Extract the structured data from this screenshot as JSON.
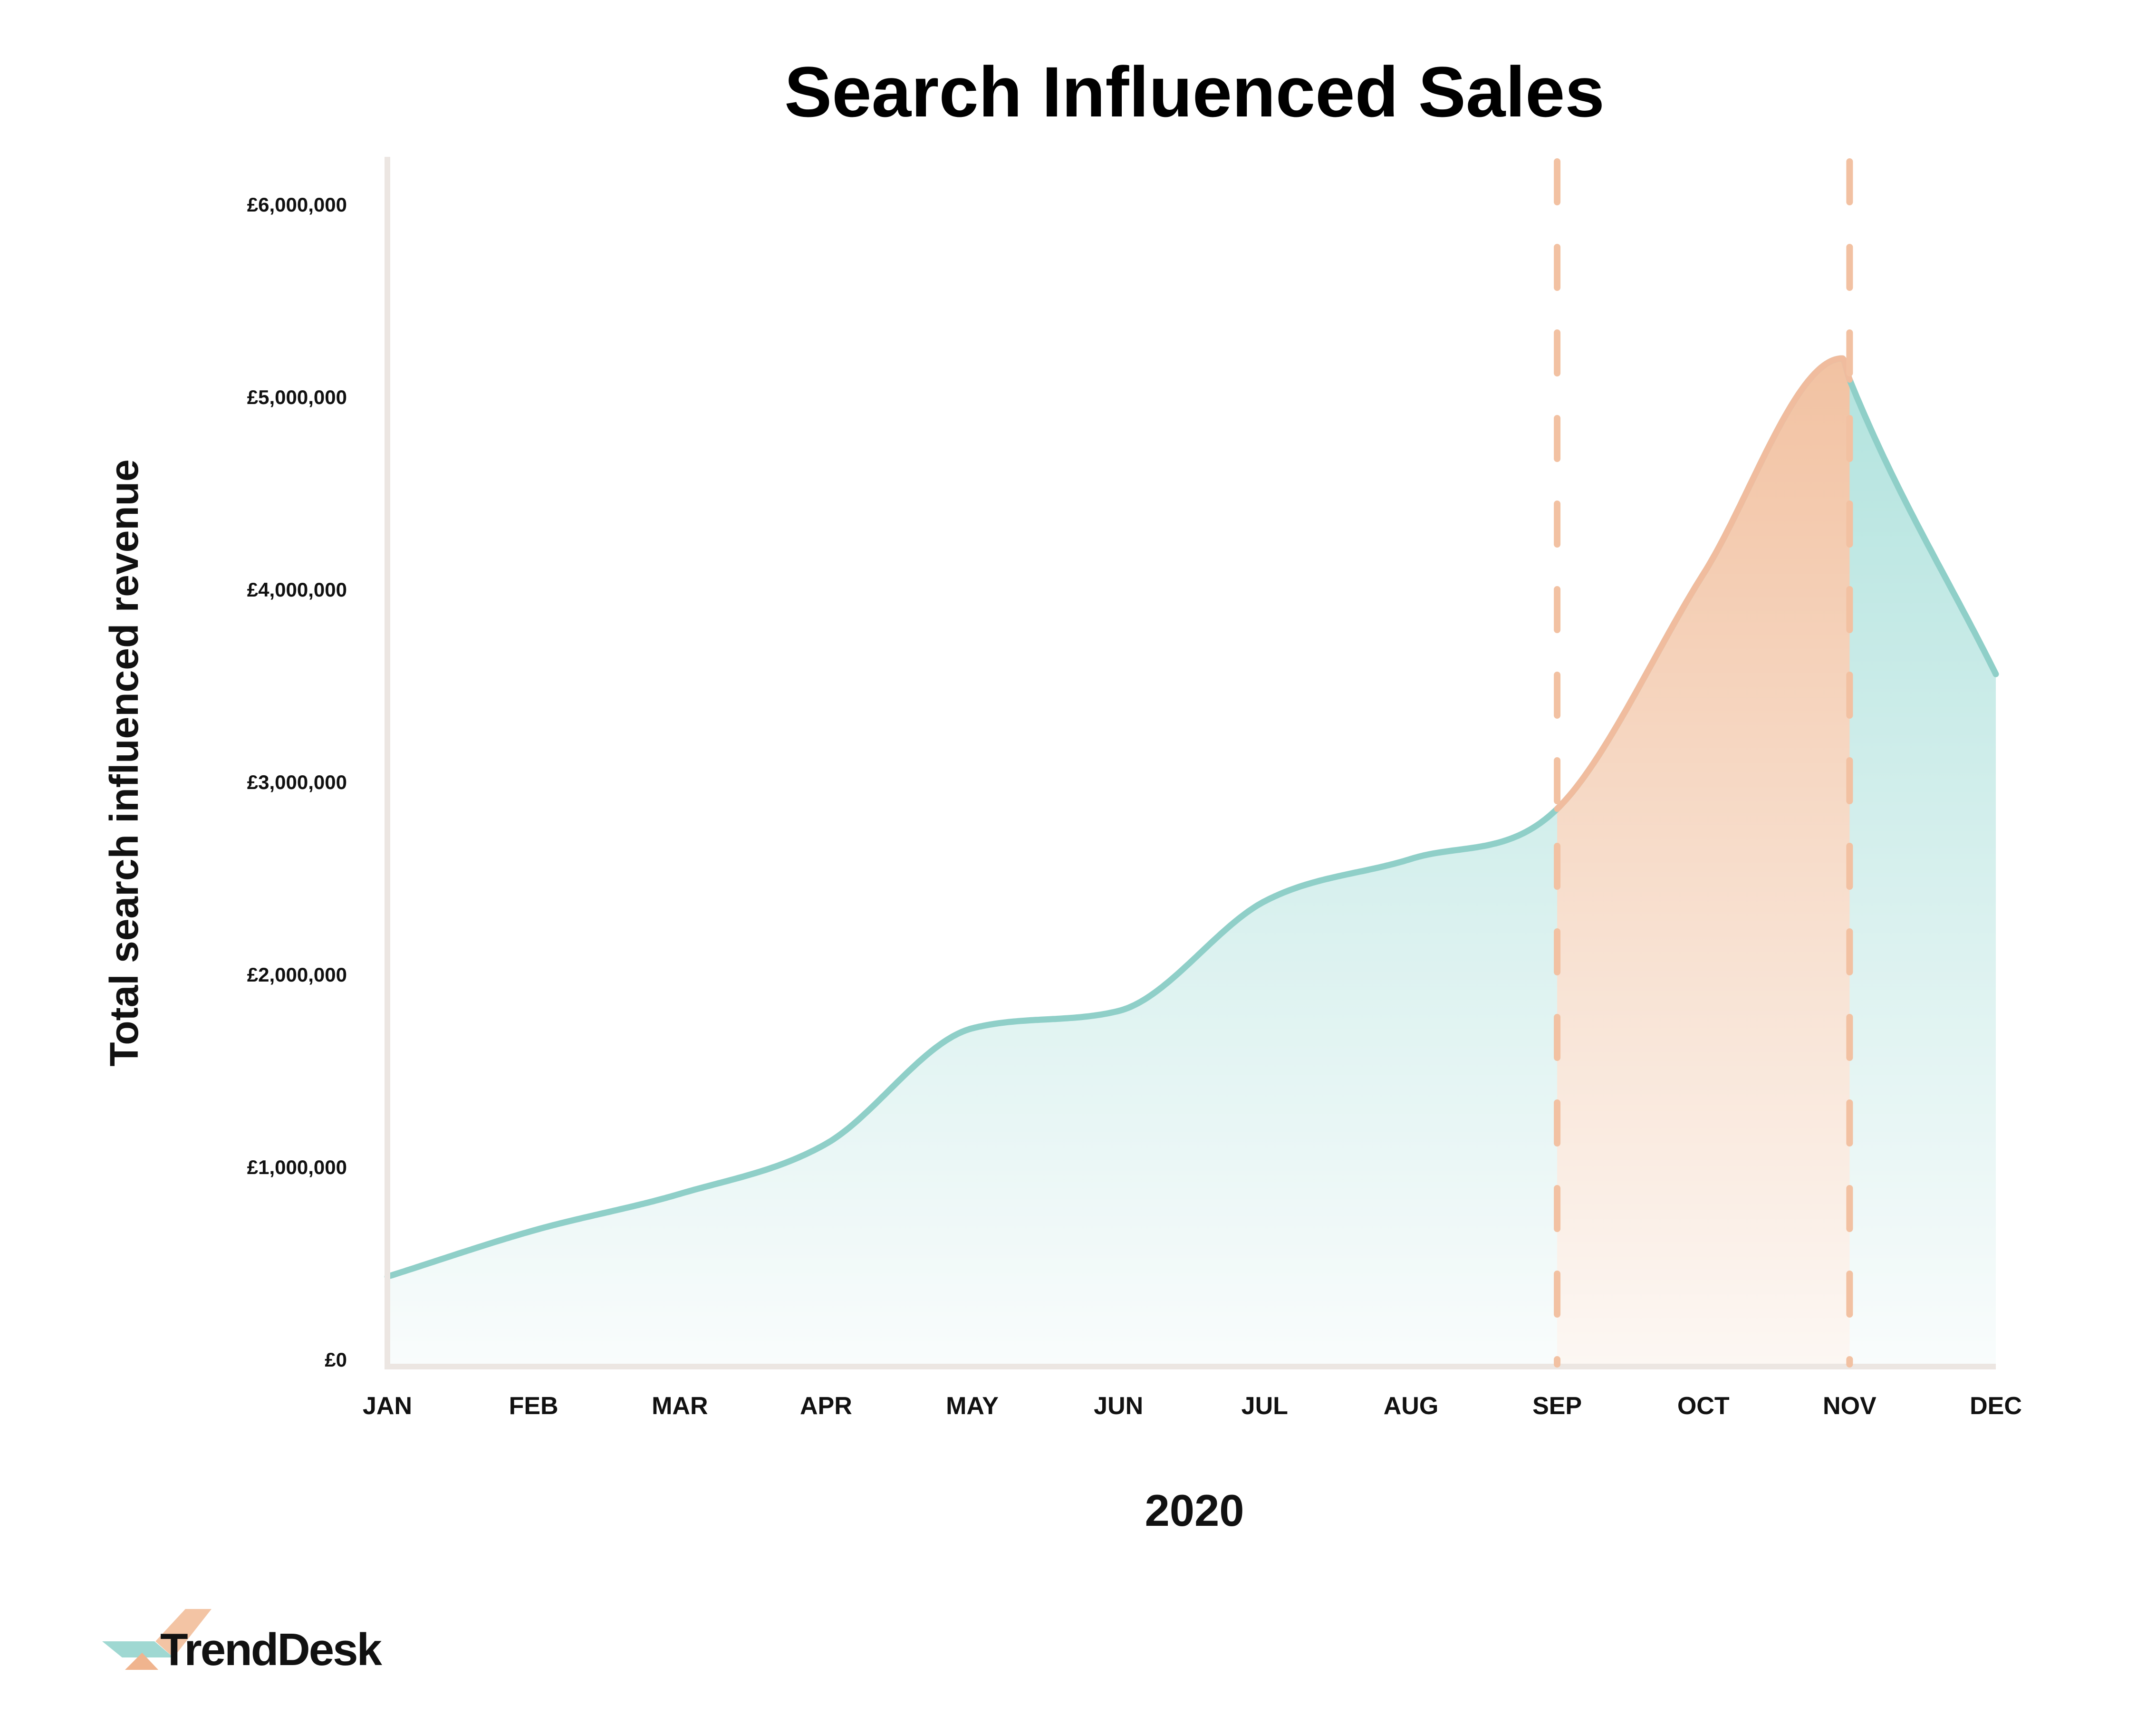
{
  "chart_data": {
    "type": "area",
    "title": "Search Influenced Sales",
    "xlabel": "2020",
    "ylabel": "Total search influenced revenue",
    "categories": [
      "JAN",
      "FEB",
      "MAR",
      "APR",
      "MAY",
      "JUN",
      "JUL",
      "AUG",
      "SEP",
      "OCT",
      "NOV",
      "DEC"
    ],
    "y_tick_labels": [
      "£0",
      "£1,000,000",
      "£2,000,000",
      "£3,000,000",
      "£4,000,000",
      "£5,000,000",
      "£6,000,000"
    ],
    "ylim": [
      0,
      6000000
    ],
    "series": [
      {
        "values": [
          430000,
          670000,
          860000,
          1120000,
          1720000,
          1810000,
          2380000,
          2600000,
          2860000,
          4080000,
          5090000,
          3560000
        ],
        "peak": {
          "month_position": 9.95,
          "value": 5200000
        }
      }
    ],
    "highlight_range": {
      "from": "SEP",
      "to": "NOV"
    },
    "grid": false,
    "legend": "none",
    "colors": {
      "line": "#8fcfc8",
      "fill_top": "#b4e4df",
      "highlight_line": "#f0bc9e",
      "highlight_fill_top": "#f2c3a3",
      "dashed_marker": "#f2c1a2",
      "axis": "#ece6e2"
    }
  },
  "brand": {
    "name": "TrendDesk",
    "logo_colors": [
      "#9fd8d2",
      "#f3c4a4",
      "#f0b48e"
    ]
  }
}
